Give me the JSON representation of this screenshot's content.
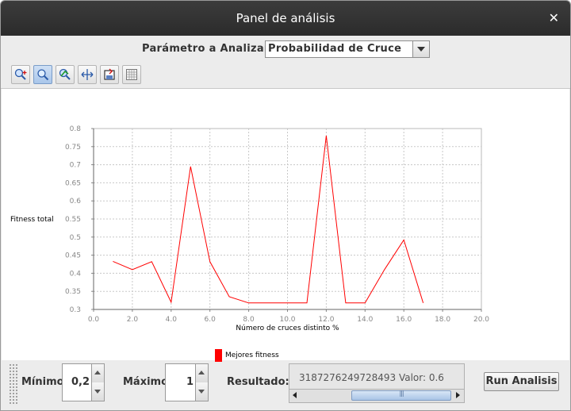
{
  "window": {
    "title": "Panel de análisis",
    "close_glyph": "✕"
  },
  "parameter": {
    "label": "Parámetro a Analizar",
    "selected": "Probabilidad de Cruce"
  },
  "toolbar": {
    "buttons": [
      {
        "icon": "zoom-in-icon"
      },
      {
        "icon": "zoom-icon",
        "active": true
      },
      {
        "icon": "zoom-out-icon"
      },
      {
        "icon": "fit-icon"
      },
      {
        "icon": "save-icon"
      },
      {
        "icon": "grid-icon"
      }
    ]
  },
  "chart_data": {
    "type": "line",
    "xlabel": "Número de cruces distinto %",
    "ylabel": "Fitness total",
    "xlim": [
      0,
      20
    ],
    "ylim": [
      0.3,
      0.8
    ],
    "x_ticks": [
      "0.0",
      "2.0",
      "4.0",
      "6.0",
      "8.0",
      "10.0",
      "12.0",
      "14.0",
      "16.0",
      "18.0",
      "20.0"
    ],
    "y_ticks": [
      "0.3",
      "0.35",
      "0.4",
      "0.45",
      "0.5",
      "0.55",
      "0.6",
      "0.65",
      "0.7",
      "0.75",
      "0.8"
    ],
    "grid": true,
    "legend_position": "bottom",
    "series": [
      {
        "name": "Mejores fitness",
        "color": "#ff0000",
        "x": [
          1,
          2,
          3,
          4,
          5,
          6,
          7,
          8,
          9,
          10,
          11,
          12,
          13,
          14,
          15,
          16,
          17
        ],
        "y": [
          0.433,
          0.41,
          0.432,
          0.32,
          0.695,
          0.432,
          0.335,
          0.318,
          0.318,
          0.318,
          0.318,
          0.78,
          0.318,
          0.318,
          0.41,
          0.492,
          0.318
        ]
      }
    ]
  },
  "bottom": {
    "min_label": "Mínimo",
    "min_value": "0,2",
    "max_label": "Máximo",
    "max_value": "1",
    "result_label": "Resultado:",
    "result_text": "3187276249728493 Valor: 0.6",
    "run_label": "Run Analisis"
  }
}
